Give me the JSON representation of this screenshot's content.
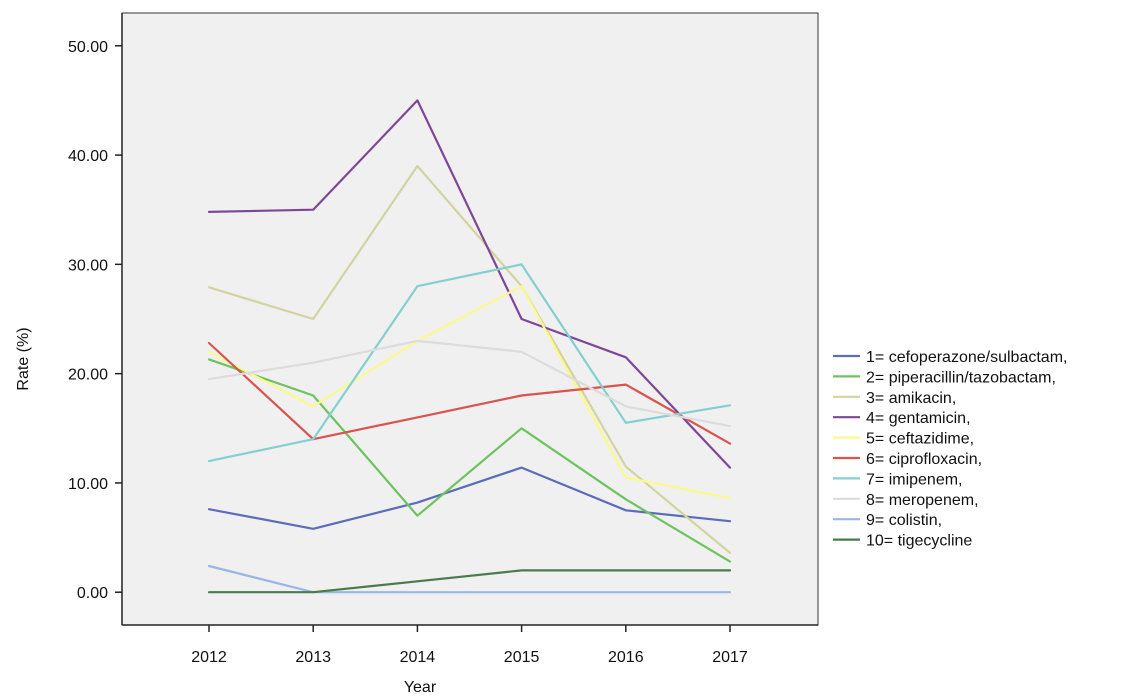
{
  "chart_data": {
    "type": "line",
    "title": "",
    "xlabel": "Year",
    "ylabel": "Rate (%)",
    "x": [
      2012,
      2013,
      2014,
      2015,
      2016,
      2017
    ],
    "x_tick_labels": [
      "2012",
      "2013",
      "2014",
      "2015",
      "2016",
      "2017"
    ],
    "ylim": [
      -3,
      53
    ],
    "y_ticks": [
      0,
      10,
      20,
      30,
      40,
      50
    ],
    "y_tick_labels": [
      "0.00",
      "10.00",
      "20.00",
      "30.00",
      "40.00",
      "50.00"
    ],
    "grid": false,
    "legend_position": "right",
    "plot_background": "#f0f0f0",
    "series": [
      {
        "name": "1= cefoperazone/sulbactam,",
        "color": "#5b6cb8",
        "values": [
          7.6,
          5.8,
          8.2,
          11.4,
          7.5,
          6.5
        ]
      },
      {
        "name": "2= piperacillin/tazobactam,",
        "color": "#6cc45e",
        "values": [
          21.3,
          18.0,
          7.0,
          15.0,
          8.5,
          2.8
        ]
      },
      {
        "name": "3= amikacin,",
        "color": "#d3d3a0",
        "values": [
          27.9,
          25.0,
          39.0,
          28.0,
          11.5,
          3.6
        ]
      },
      {
        "name": "4= gentamicin,",
        "color": "#7d4797",
        "values": [
          34.8,
          35.0,
          45.0,
          25.0,
          21.5,
          11.4
        ]
      },
      {
        "name": "5= ceftazidime,",
        "color": "#fafa8c",
        "values": [
          22.0,
          17.0,
          23.0,
          28.0,
          10.5,
          8.6
        ]
      },
      {
        "name": "6= ciprofloxacin,",
        "color": "#d9534f",
        "values": [
          22.8,
          14.0,
          16.0,
          18.0,
          19.0,
          13.6
        ]
      },
      {
        "name": "7= imipenem,",
        "color": "#84cfd0",
        "values": [
          12.0,
          14.0,
          28.0,
          30.0,
          15.5,
          17.1
        ]
      },
      {
        "name": "8= meropenem,",
        "color": "#dcdcdc",
        "values": [
          19.5,
          21.0,
          23.0,
          22.0,
          17.0,
          15.2
        ]
      },
      {
        "name": "9= colistin,",
        "color": "#9ab7e3",
        "values": [
          2.4,
          0.0,
          0.0,
          0.0,
          0.0,
          0.0
        ]
      },
      {
        "name": "10= tigecycline",
        "color": "#4a7a4d",
        "values": [
          0.0,
          0.0,
          1.0,
          2.0,
          2.0,
          2.0
        ]
      }
    ]
  }
}
